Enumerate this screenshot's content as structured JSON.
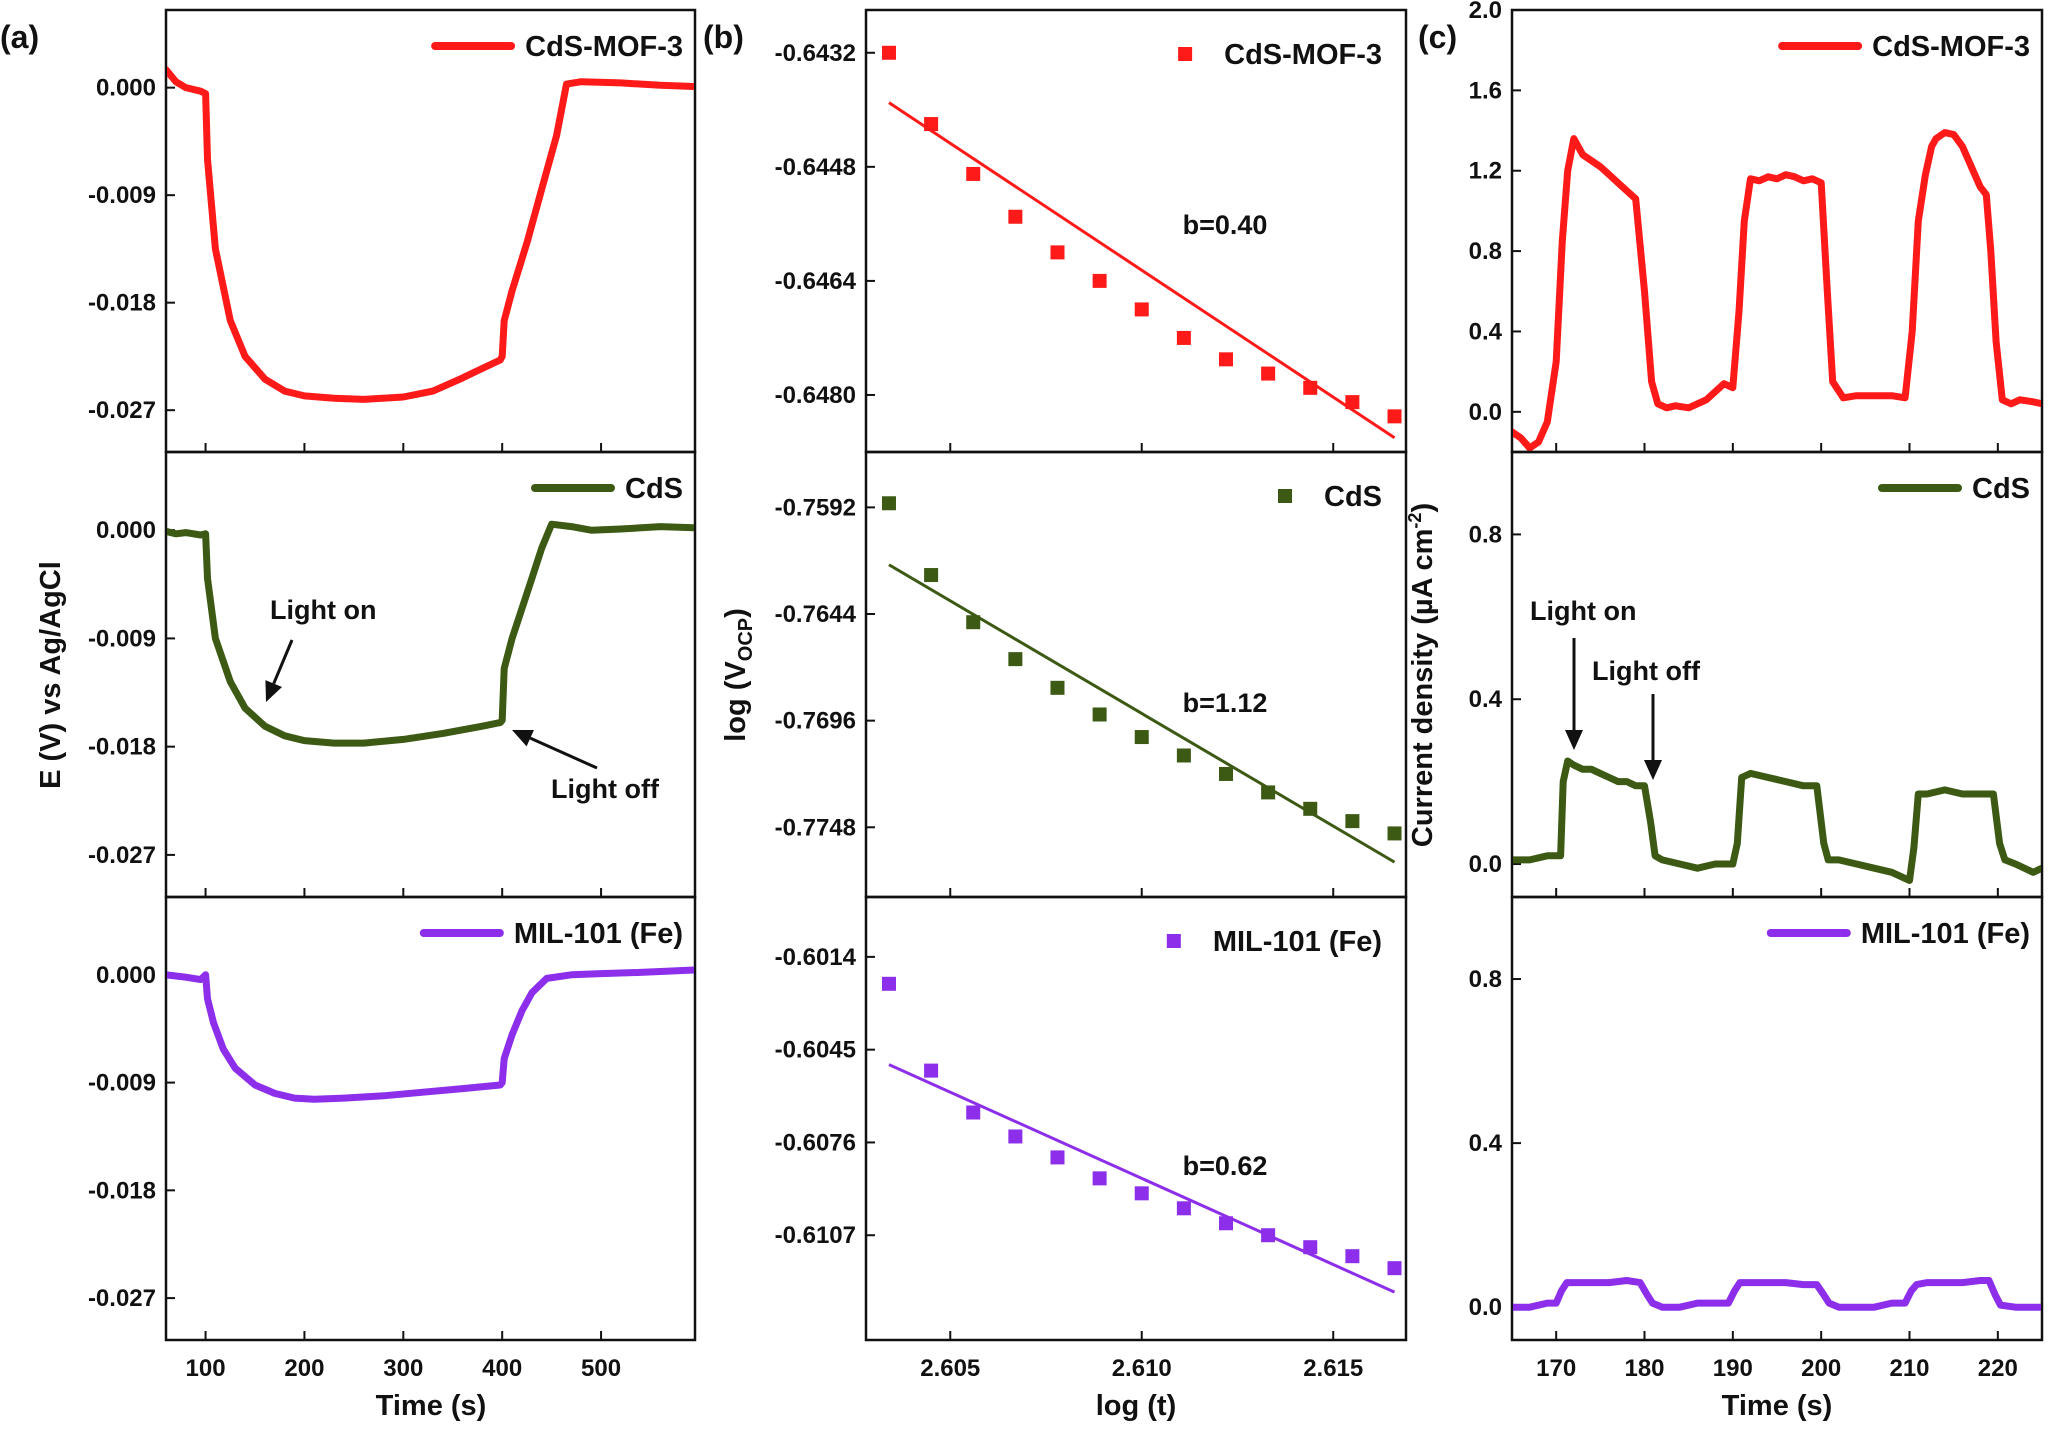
{
  "chart_data": [
    {
      "panel_label": "(a)",
      "type": "line",
      "xlabel": "Time (s)",
      "ylabel": "E (V) vs Ag/AgCl",
      "xlim": [
        60,
        595
      ],
      "xticks": [
        100,
        200,
        300,
        400,
        500
      ],
      "subplots": [
        {
          "name": "CdS-MOF-3",
          "color": "#ff1a1a",
          "legend_position": "top-right",
          "ylim": [
            -0.0305,
            0.0065
          ],
          "yticks": [
            0.0,
            -0.009,
            -0.018,
            -0.027
          ],
          "ytick_labels": [
            "0.000",
            "-0.009",
            "-0.018",
            "-0.027"
          ],
          "x": [
            60,
            70,
            80,
            95,
            100,
            102,
            110,
            125,
            140,
            160,
            180,
            200,
            230,
            260,
            300,
            330,
            360,
            380,
            398,
            400,
            402,
            410,
            425,
            440,
            455,
            465,
            480,
            520,
            560,
            595
          ],
          "y": [
            0.0015,
            0.0005,
            0.0,
            -0.0003,
            -0.0005,
            -0.006,
            -0.0135,
            -0.0195,
            -0.0225,
            -0.0244,
            -0.0254,
            -0.0258,
            -0.026,
            -0.0261,
            -0.0259,
            -0.0254,
            -0.0243,
            -0.0235,
            -0.0228,
            -0.0225,
            -0.0195,
            -0.017,
            -0.013,
            -0.0085,
            -0.004,
            0.0003,
            0.0005,
            0.0004,
            0.0002,
            0.0001
          ]
        },
        {
          "name": "CdS",
          "color": "#3c5a14",
          "legend_position": "top-right",
          "ylim": [
            -0.0305,
            0.0065
          ],
          "yticks": [
            0.0,
            -0.009,
            -0.018,
            -0.027
          ],
          "ytick_labels": [
            "0.000",
            "-0.009",
            "-0.018",
            "-0.027"
          ],
          "x": [
            60,
            70,
            80,
            95,
            100,
            102,
            110,
            125,
            140,
            160,
            180,
            200,
            230,
            260,
            300,
            340,
            380,
            398,
            400,
            402,
            410,
            420,
            430,
            440,
            450,
            470,
            490,
            520,
            560,
            595
          ],
          "y": [
            -0.0001,
            -0.0003,
            -0.0002,
            -0.0004,
            -0.0003,
            -0.004,
            -0.009,
            -0.0126,
            -0.0148,
            -0.0163,
            -0.0171,
            -0.0175,
            -0.0177,
            -0.0177,
            -0.0174,
            -0.0169,
            -0.0163,
            -0.016,
            -0.0158,
            -0.0115,
            -0.009,
            -0.0065,
            -0.004,
            -0.0015,
            0.0005,
            0.0003,
            0.0,
            0.0001,
            0.0003,
            0.0002
          ]
        },
        {
          "name": "MIL-101 (Fe)",
          "color": "#8c2eea",
          "legend_position": "top-right",
          "ylim": [
            -0.0305,
            0.0065
          ],
          "yticks": [
            0.0,
            -0.009,
            -0.018,
            -0.027
          ],
          "ytick_labels": [
            "0.000",
            "-0.009",
            "-0.018",
            "-0.027"
          ],
          "x": [
            60,
            80,
            95,
            100,
            102,
            108,
            118,
            130,
            150,
            170,
            190,
            210,
            240,
            280,
            320,
            360,
            398,
            400,
            402,
            410,
            420,
            430,
            445,
            470,
            500,
            540,
            595
          ],
          "y": [
            0.0,
            -0.0002,
            -0.0004,
            0.0,
            -0.002,
            -0.004,
            -0.0062,
            -0.0078,
            -0.0092,
            -0.0099,
            -0.0103,
            -0.0104,
            -0.0103,
            -0.0101,
            -0.0098,
            -0.0095,
            -0.0092,
            -0.009,
            -0.007,
            -0.005,
            -0.003,
            -0.0015,
            -0.0003,
            0.0,
            0.0001,
            0.0002,
            0.0004
          ]
        }
      ],
      "annotations": [
        "Light on",
        "Light off"
      ]
    },
    {
      "panel_label": "(b)",
      "type": "scatter",
      "xlabel": "log (t)",
      "ylabel": "log (V",
      "ylabel_subscript": "OCP",
      "ylabel_close": ")",
      "xlim": [
        2.6028,
        2.6169
      ],
      "xticks": [
        2.605,
        2.61,
        2.615
      ],
      "xtick_labels": [
        "2.605",
        "2.610",
        "2.615"
      ],
      "subplots": [
        {
          "name": "CdS-MOF-3",
          "color": "#ff1a1a",
          "legend_position": "top-right",
          "ylim": [
            -0.6488,
            -0.6426
          ],
          "yticks": [
            -0.6432,
            -0.6448,
            -0.6464,
            -0.648
          ],
          "ytick_labels": [
            "-0.6432",
            "-0.6448",
            "-0.6464",
            "-0.6480"
          ],
          "x": [
            2.6034,
            2.6045,
            2.6056,
            2.6067,
            2.6078,
            2.6089,
            2.61,
            2.6111,
            2.6122,
            2.6133,
            2.6144,
            2.6155,
            2.6166
          ],
          "y": [
            -0.6432,
            -0.6442,
            -0.6449,
            -0.6455,
            -0.646,
            -0.6464,
            -0.6468,
            -0.6472,
            -0.6475,
            -0.6477,
            -0.6479,
            -0.6481,
            -0.6483
          ],
          "fit_x": [
            2.6034,
            2.6166
          ],
          "fit_y": [
            -0.6439,
            -0.6486
          ],
          "slope_label": "b=0.40"
        },
        {
          "name": "CdS",
          "color": "#3c5a14",
          "legend_position": "top-right",
          "ylim": [
            -0.7782,
            -0.7565
          ],
          "yticks": [
            -0.7592,
            -0.7644,
            -0.7696,
            -0.7748
          ],
          "ytick_labels": [
            "-0.7592",
            "-0.7644",
            "-0.7696",
            "-0.7748"
          ],
          "x": [
            2.6034,
            2.6045,
            2.6056,
            2.6067,
            2.6078,
            2.6089,
            2.61,
            2.6111,
            2.6122,
            2.6133,
            2.6144,
            2.6155,
            2.6166
          ],
          "y": [
            -0.759,
            -0.7625,
            -0.7648,
            -0.7666,
            -0.768,
            -0.7693,
            -0.7704,
            -0.7713,
            -0.7722,
            -0.7731,
            -0.7739,
            -0.7745,
            -0.7751
          ],
          "fit_x": [
            2.6034,
            2.6166
          ],
          "fit_y": [
            -0.762,
            -0.7765
          ],
          "slope_label": "b=1.12"
        },
        {
          "name": "MIL-101 (Fe)",
          "color": "#8c2eea",
          "legend_position": "top-right",
          "ylim": [
            -0.6142,
            -0.5994
          ],
          "yticks": [
            -0.6014,
            -0.6045,
            -0.6076,
            -0.6107
          ],
          "ytick_labels": [
            "-0.6014",
            "-0.6045",
            "-0.6076",
            "-0.6107"
          ],
          "x": [
            2.6034,
            2.6045,
            2.6056,
            2.6067,
            2.6078,
            2.6089,
            2.61,
            2.6111,
            2.6122,
            2.6133,
            2.6144,
            2.6155,
            2.6166
          ],
          "y": [
            -0.6023,
            -0.6052,
            -0.6066,
            -0.6074,
            -0.6081,
            -0.6088,
            -0.6093,
            -0.6098,
            -0.6103,
            -0.6107,
            -0.6111,
            -0.6114,
            -0.6118
          ],
          "fit_x": [
            2.6034,
            2.6166
          ],
          "fit_y": [
            -0.605,
            -0.6126
          ],
          "slope_label": "b=0.62"
        }
      ]
    },
    {
      "panel_label": "(c)",
      "type": "line",
      "xlabel": "Time (s)",
      "ylabel": "Current density (µA cm",
      "ylabel_superscript": "-2",
      "ylabel_close": ")",
      "xlim": [
        165,
        225
      ],
      "xticks": [
        170,
        180,
        190,
        200,
        210,
        220
      ],
      "annotations": [
        "Light on",
        "Light off"
      ],
      "subplots": [
        {
          "name": "CdS-MOF-3",
          "color": "#ff1a1a",
          "legend_position": "top-right",
          "ylim": [
            -0.2,
            2.0
          ],
          "yticks": [
            0.0,
            0.4,
            0.8,
            1.2,
            1.6,
            2.0
          ],
          "ytick_labels": [
            "0.0",
            "0.4",
            "0.8",
            "1.2",
            "1.6",
            "2.0"
          ],
          "x": [
            165,
            166,
            167,
            168,
            169,
            170,
            170.7,
            171.3,
            172,
            173,
            174,
            175,
            176,
            177,
            178,
            179,
            180,
            180.8,
            181.5,
            182.5,
            183.5,
            185,
            187,
            189,
            190,
            190.7,
            191.3,
            192,
            193,
            194,
            195,
            196,
            197,
            198,
            199,
            200,
            200.7,
            201.3,
            202.5,
            204,
            206,
            208,
            209.5,
            210.3,
            211,
            211.8,
            212.5,
            213,
            214,
            215,
            216,
            217,
            218,
            218.7,
            219.2,
            219.8,
            220.5,
            221.5,
            222.5,
            224,
            225
          ],
          "y": [
            -0.1,
            -0.13,
            -0.18,
            -0.15,
            -0.05,
            0.25,
            0.85,
            1.2,
            1.36,
            1.28,
            1.25,
            1.22,
            1.18,
            1.14,
            1.1,
            1.06,
            0.6,
            0.15,
            0.04,
            0.02,
            0.03,
            0.02,
            0.06,
            0.14,
            0.12,
            0.5,
            0.95,
            1.16,
            1.15,
            1.17,
            1.16,
            1.18,
            1.17,
            1.15,
            1.16,
            1.14,
            0.6,
            0.15,
            0.07,
            0.08,
            0.08,
            0.08,
            0.07,
            0.4,
            0.95,
            1.18,
            1.32,
            1.36,
            1.39,
            1.38,
            1.32,
            1.22,
            1.12,
            1.08,
            0.8,
            0.35,
            0.06,
            0.04,
            0.06,
            0.05,
            0.04
          ]
        },
        {
          "name": "CdS",
          "color": "#3c5a14",
          "legend_position": "top-right",
          "ylim": [
            -0.08,
            1.0
          ],
          "yticks": [
            0.0,
            0.4,
            0.8
          ],
          "ytick_labels": [
            "0.0",
            "0.4",
            "0.8"
          ],
          "x": [
            165,
            167,
            169,
            170.5,
            170.8,
            171.3,
            172,
            173,
            174,
            175,
            176,
            177,
            178,
            179,
            180,
            180.7,
            181.2,
            182,
            184,
            186,
            188,
            190,
            190.5,
            191,
            192,
            194,
            196,
            198,
            199.5,
            200.3,
            200.8,
            202,
            204,
            206,
            208,
            210,
            210.5,
            211,
            212,
            214,
            216,
            218,
            219.5,
            220.2,
            220.8,
            222,
            224,
            225
          ],
          "y": [
            0.01,
            0.01,
            0.02,
            0.02,
            0.2,
            0.25,
            0.24,
            0.23,
            0.23,
            0.22,
            0.21,
            0.2,
            0.2,
            0.19,
            0.19,
            0.1,
            0.02,
            0.01,
            0.0,
            -0.01,
            0.0,
            0.0,
            0.05,
            0.21,
            0.22,
            0.21,
            0.2,
            0.19,
            0.19,
            0.05,
            0.01,
            0.01,
            0.0,
            -0.01,
            -0.02,
            -0.04,
            0.04,
            0.17,
            0.17,
            0.18,
            0.17,
            0.17,
            0.17,
            0.05,
            0.01,
            0.0,
            -0.02,
            -0.01
          ]
        },
        {
          "name": "MIL-101 (Fe)",
          "color": "#8c2eea",
          "legend_position": "top-right",
          "ylim": [
            -0.08,
            1.0
          ],
          "yticks": [
            0.0,
            0.4,
            0.8
          ],
          "ytick_labels": [
            "0.0",
            "0.4",
            "0.8"
          ],
          "x": [
            165,
            167,
            169,
            170,
            170.6,
            171.2,
            172,
            174,
            176,
            178,
            179.5,
            180.3,
            180.9,
            182,
            184,
            186,
            188,
            189.5,
            190.2,
            190.8,
            192,
            194,
            196,
            198,
            199.5,
            200.3,
            200.9,
            202,
            204,
            206,
            208,
            209.5,
            210.2,
            210.8,
            212,
            214,
            216,
            218,
            219,
            219.7,
            220.3,
            222,
            224,
            225
          ],
          "y": [
            0.0,
            0.0,
            0.01,
            0.01,
            0.04,
            0.06,
            0.06,
            0.06,
            0.06,
            0.065,
            0.06,
            0.03,
            0.01,
            0.0,
            0.0,
            0.01,
            0.01,
            0.01,
            0.04,
            0.06,
            0.06,
            0.06,
            0.06,
            0.055,
            0.055,
            0.03,
            0.01,
            0.0,
            0.0,
            0.0,
            0.01,
            0.01,
            0.04,
            0.055,
            0.06,
            0.06,
            0.06,
            0.065,
            0.065,
            0.03,
            0.005,
            0.0,
            0.0,
            0.0
          ]
        }
      ]
    }
  ]
}
